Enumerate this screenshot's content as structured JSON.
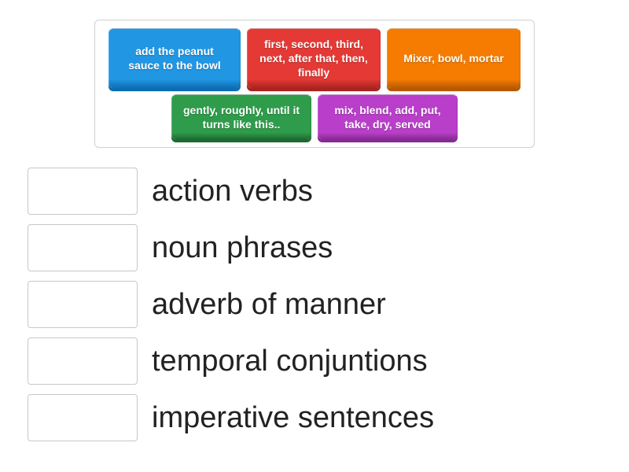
{
  "tile_bank": {
    "border_color": "#d0d0d0",
    "tiles": [
      {
        "text": "add the peanut sauce to the bowl",
        "bg": "#2196e3",
        "shadow": "#0d6db3",
        "width": 168,
        "height": 62
      },
      {
        "text": "first, second, third, next, after that, then, finally",
        "bg": "#e53935",
        "shadow": "#a82421",
        "width": 170,
        "height": 62
      },
      {
        "text": "Mixer, bowl, mortar",
        "bg": "#f57c00",
        "shadow": "#b85900",
        "width": 170,
        "height": 62
      },
      {
        "text": "gently, roughly, until it turns like this..",
        "bg": "#2e9c4a",
        "shadow": "#1e6b32",
        "width": 178,
        "height": 52
      },
      {
        "text": "mix, blend, add, put, take, dry, served",
        "bg": "#b93ec9",
        "shadow": "#872a94",
        "width": 178,
        "height": 52
      }
    ]
  },
  "answers": {
    "label_color": "#222222",
    "label_fontsize": 38,
    "box_border": "#c8c8c8",
    "rows": [
      {
        "label": "action verbs"
      },
      {
        "label": "noun phrases"
      },
      {
        "label": "adverb of manner"
      },
      {
        "label": "temporal conjuntions"
      },
      {
        "label": "imperative sentences"
      }
    ]
  }
}
